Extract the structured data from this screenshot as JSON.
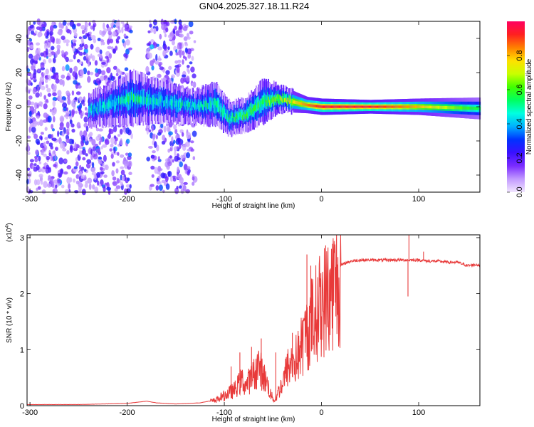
{
  "title": "GN04.2025.327.18.11.R24",
  "chart_data": [
    {
      "type": "heatmap",
      "xlabel": "Height of straight line (km)",
      "ylabel": "Frequency (Hz)",
      "xlim": [
        -303,
        163
      ],
      "ylim": [
        -50,
        50
      ],
      "xticks": [
        -300,
        -200,
        -100,
        0,
        100
      ],
      "yticks": [
        -40,
        -20,
        0,
        20,
        40
      ],
      "colorbar": {
        "label": "Normalized spectral amplitude",
        "range": [
          0,
          1
        ],
        "ticks": [
          "0.0",
          "0.2",
          "0.4",
          "0.6",
          "0.8"
        ],
        "tick_values": [
          0.0,
          0.2,
          0.4,
          0.6,
          0.8
        ],
        "colors": [
          "#f2e6ff",
          "#c29aff",
          "#7a2cff",
          "#3a10ff",
          "#0033ff",
          "#00b0ff",
          "#00ffe0",
          "#00ff60",
          "#40ff00",
          "#c8ff00",
          "#ffe000",
          "#ff8000",
          "#ff2020",
          "#ff0060"
        ]
      },
      "scatter_region": {
        "x_from": -303,
        "x_to": -130,
        "gap_x": [
          -195,
          -180
        ],
        "y_extent": 50
      },
      "ridge": [
        {
          "x": -240,
          "y": -2,
          "w": 6,
          "a": 0.45
        },
        {
          "x": -215,
          "y": 2,
          "w": 8,
          "a": 0.4
        },
        {
          "x": -195,
          "y": 5,
          "w": 10,
          "a": 0.5
        },
        {
          "x": -175,
          "y": 4,
          "w": 8,
          "a": 0.45
        },
        {
          "x": -130,
          "y": 0,
          "w": 6,
          "a": 0.45
        },
        {
          "x": -110,
          "y": 2,
          "w": 8,
          "a": 0.5
        },
        {
          "x": -95,
          "y": -7,
          "w": 6,
          "a": 0.5
        },
        {
          "x": -80,
          "y": -5,
          "w": 6,
          "a": 0.55
        },
        {
          "x": -60,
          "y": 3,
          "w": 8,
          "a": 0.55
        },
        {
          "x": -45,
          "y": 5,
          "w": 5,
          "a": 0.65
        },
        {
          "x": -30,
          "y": 3,
          "w": 4,
          "a": 0.75
        },
        {
          "x": -15,
          "y": 1,
          "w": 3,
          "a": 0.85
        },
        {
          "x": 0,
          "y": 0,
          "w": 3,
          "a": 0.95
        },
        {
          "x": 50,
          "y": 0,
          "w": 2.5,
          "a": 0.95
        },
        {
          "x": 100,
          "y": 0,
          "w": 3,
          "a": 0.8
        },
        {
          "x": 163,
          "y": -1,
          "w": 4,
          "a": 0.55
        }
      ]
    },
    {
      "type": "line",
      "xlabel": "Height of straight line (km)",
      "ylabel": "SNR (10 * v/v)",
      "yscale_label": "(x10",
      "yscale_exp": "4",
      "yscale_close": ")",
      "xlim": [
        -303,
        163
      ],
      "ylim": [
        0,
        3.05
      ],
      "xticks": [
        -300,
        -200,
        -100,
        0,
        100
      ],
      "yticks": [
        0,
        1,
        2,
        3
      ],
      "color": "#e83a3a",
      "series": [
        {
          "name": "SNR",
          "x": [
            -303,
            -250,
            -200,
            -180,
            -170,
            -150,
            -125,
            -110,
            -100,
            -90,
            -82,
            -78,
            -70,
            -65,
            -60,
            -55,
            -52,
            -48,
            -45,
            -40,
            -35,
            -30,
            -25,
            -20,
            -15,
            -10,
            -5,
            0,
            5,
            10,
            15,
            20,
            25,
            30,
            40,
            50,
            60,
            70,
            80,
            90,
            100,
            110,
            120,
            130,
            140,
            150,
            160,
            163
          ],
          "y": [
            0.02,
            0.02,
            0.04,
            0.08,
            0.05,
            0.03,
            0.05,
            0.1,
            0.2,
            0.3,
            0.5,
            0.4,
            0.6,
            0.8,
            0.6,
            0.4,
            0.2,
            0.1,
            0.25,
            0.45,
            0.75,
            0.85,
            0.95,
            1.2,
            1.45,
            1.7,
            1.85,
            2.05,
            2.15,
            2.3,
            2.42,
            2.5,
            2.55,
            2.58,
            2.6,
            2.6,
            2.6,
            2.6,
            2.6,
            2.6,
            2.6,
            2.58,
            2.58,
            2.56,
            2.56,
            2.5,
            2.52,
            2.5
          ]
        }
      ],
      "spikes": [
        {
          "x": -93,
          "y": 0.7
        },
        {
          "x": -84,
          "y": 0.95
        },
        {
          "x": -72,
          "y": 1.05
        },
        {
          "x": -62,
          "y": 1.2
        },
        {
          "x": -47,
          "y": 0.95
        },
        {
          "x": -30,
          "y": 1.3
        },
        {
          "x": -15,
          "y": 2.7
        },
        {
          "x": -11,
          "y": 2.5
        },
        {
          "x": 90,
          "y": 3.05
        },
        {
          "x": 89,
          "y": 1.95
        },
        {
          "x": 105,
          "y": 2.75
        }
      ]
    }
  ]
}
